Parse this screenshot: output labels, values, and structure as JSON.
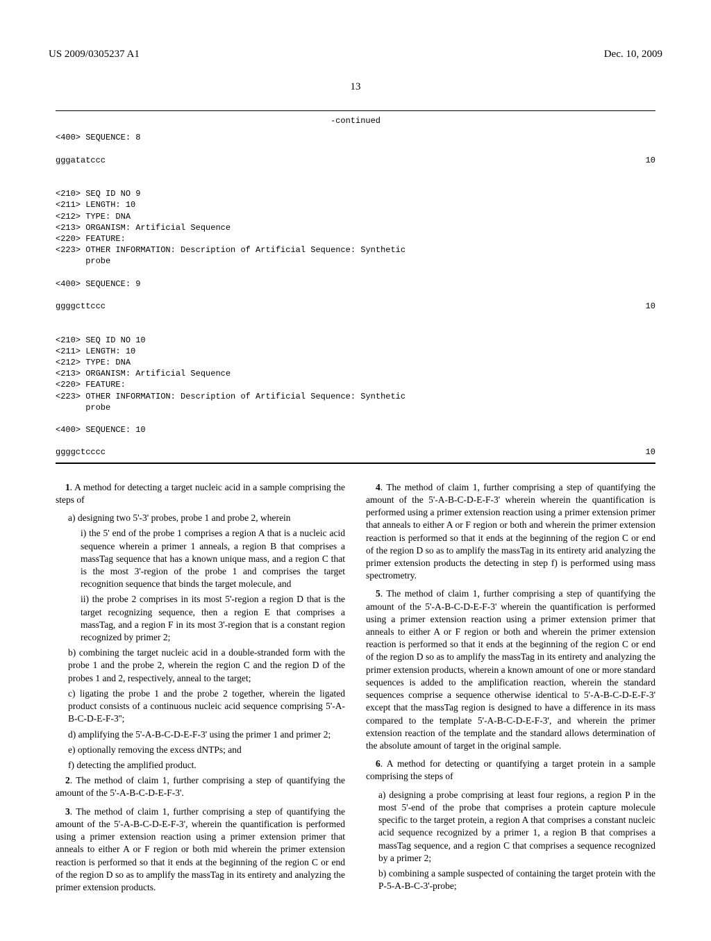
{
  "header": {
    "pub_no": "US 2009/0305237 A1",
    "date": "Dec. 10, 2009"
  },
  "page_number": "13",
  "continued_label": "-continued",
  "seq8": {
    "header": "<400> SEQUENCE: 8",
    "sequence": "gggatatccc",
    "length_num": "10"
  },
  "seq9": {
    "id": "<210> SEQ ID NO 9",
    "length": "<211> LENGTH: 10",
    "type": "<212> TYPE: DNA",
    "organism": "<213> ORGANISM: Artificial Sequence",
    "feature": "<220> FEATURE:",
    "other1": "<223> OTHER INFORMATION: Description of Artificial Sequence: Synthetic",
    "other2": "      probe",
    "header": "<400> SEQUENCE: 9",
    "sequence": "ggggcttccc",
    "length_num": "10"
  },
  "seq10": {
    "id": "<210> SEQ ID NO 10",
    "length": "<211> LENGTH: 10",
    "type": "<212> TYPE: DNA",
    "organism": "<213> ORGANISM: Artificial Sequence",
    "feature": "<220> FEATURE:",
    "other1": "<223> OTHER INFORMATION: Description of Artificial Sequence: Synthetic",
    "other2": "      probe",
    "header": "<400> SEQUENCE: 10",
    "sequence": "ggggctcccc",
    "length_num": "10"
  },
  "col1": {
    "c1_intro": "1. A method for detecting a target nucleic acid in a sample comprising the steps of",
    "c1_a": "a) designing two 5'-3' probes, probe 1 and probe 2, wherein",
    "c1_i": "i) the 5' end of the probe 1 comprises a region A that is a nucleic acid sequence wherein a primer 1 anneals, a region B that comprises a massTag sequence that has a known unique mass, and a region C that is the most 3'-region of the probe 1 and comprises the target recognition sequence that binds the target molecule, and",
    "c1_ii": "ii) the probe 2 comprises in its most 5'-region a region D that is the target recognizing sequence, then a region E that comprises a massTag, and a region F in its most 3'-region that is a constant region recognized by primer 2;",
    "c1_b": "b) combining the target nucleic acid in a double-stranded form with the probe 1 and the probe 2, wherein the region C and the region D of the probes 1 and 2, respectively, anneal to the target;",
    "c1_c": "c) ligating the probe 1 and the probe 2 together, wherein the ligated product consists of a continuous nucleic acid sequence comprising 5'-A-B-C-D-E-F-3'';",
    "c1_d": "d) amplifying the 5'-A-B-C-D-E-F-3' using the primer 1 and primer 2;",
    "c1_e": "e) optionally removing the excess dNTPs; and",
    "c1_f": "f) detecting the amplified product.",
    "c2": "2. The method of claim 1, further comprising a step of quantifying the amount of the 5'-A-B-C-D-E-F-3'.",
    "c3": "3. The method of claim 1, further comprising a step of quantifying the amount of the 5'-A-B-C-D-E-F-3', wherein the quantification is performed using a primer extension reaction using a primer extension primer that anneals to either A or F region or both mid wherein the primer extension reaction is performed so that it ends at the beginning of the region C or end of the region D so as to amplify the massTag in its entirety and analyzing the primer extension products."
  },
  "col2": {
    "c4": "4. The method of claim 1, further comprising a step of quantifying the amount of the 5'-A-B-C-D-E-F-3' wherein wherein the quantification is performed using a primer extension reaction using a primer extension primer that anneals to either A or F region or both and wherein the primer extension reaction is performed so that it ends at the beginning of the region C or end of the region D so as to amplify the massTag in its entirety arid analyzing the primer extension products the detecting in step f) is performed using mass spectrometry.",
    "c5": "5. The method of claim 1, further comprising a step of quantifying the amount of the 5'-A-B-C-D-E-F-3' wherein the quantification is performed using a primer extension reaction using a primer extension primer that anneals to either A or F region or both and wherein the primer extension reaction is performed so that it ends at the beginning of the region C or end of the region D so as to amplify the massTag in its entirety and analyzing the primer extension products, wherein a known amount of one or more standard sequences is added to the amplification reaction, wherein the standard sequences comprise a sequence otherwise identical to 5'-A-B-C-D-E-F-3' except that the massTag region is designed to have a difference in its mass compared to the template 5'-A-B-C-D-E-F-3', and wherein the primer extension reaction of the template and the standard allows determination of the absolute amount of target in the original sample.",
    "c6_intro": "6. A method for detecting or quantifying a target protein in a sample comprising the steps of",
    "c6_a": "a) designing a probe comprising at least four regions, a region P in the most 5'-end of the probe that comprises a protein capture molecule specific to the target protein, a region A that comprises a constant nucleic acid sequence recognized by a primer 1, a region B that comprises a massTag sequence, and a region C that comprises a sequence recognized by a primer 2;",
    "c6_b": "b) combining a sample suspected of containing the target protein with the P-5-A-B-C-3'-probe;"
  }
}
